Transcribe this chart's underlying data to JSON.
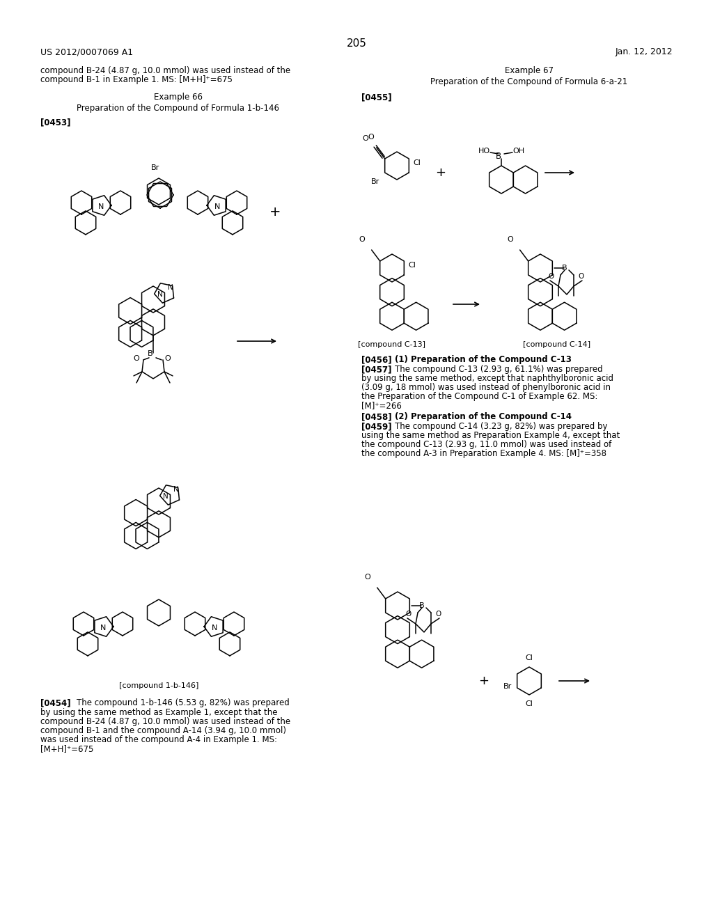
{
  "bg": "#ffffff",
  "header_left": "US 2012/0007069 A1",
  "header_right": "Jan. 12, 2012",
  "page_number": "205"
}
